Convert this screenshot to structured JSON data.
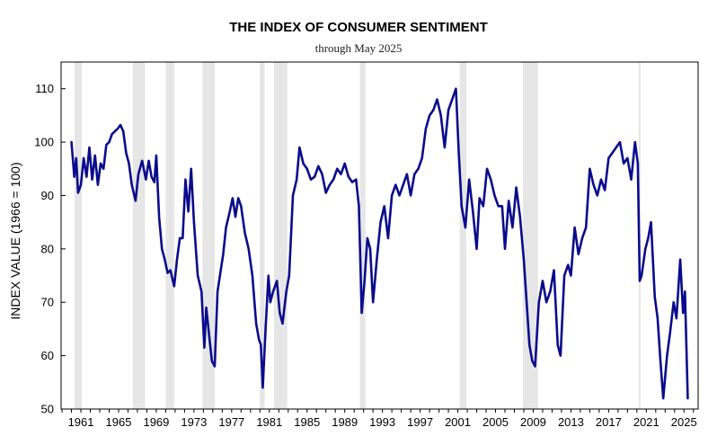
{
  "chart_data": {
    "type": "line",
    "title": "THE INDEX OF CONSUMER SENTIMENT",
    "subtitle": "through May 2025",
    "ylabel": "INDEX VALUE (1966 = 100)",
    "xlabel": "",
    "xlim": [
      1958.9,
      2026.5
    ],
    "ylim": [
      50,
      115
    ],
    "yticks": [
      50,
      60,
      70,
      80,
      90,
      100,
      110
    ],
    "xticks": [
      "1961",
      "1965",
      "1969",
      "1973",
      "1977",
      "1981",
      "1985",
      "1989",
      "1993",
      "1997",
      "2001",
      "2005",
      "2009",
      "2013",
      "2017",
      "2021",
      "2025"
    ],
    "grid": false,
    "recessions": [
      [
        1960.33,
        1961.1
      ],
      [
        1966.5,
        1967.8
      ],
      [
        1970.0,
        1970.9
      ],
      [
        1973.9,
        1975.2
      ],
      [
        1980.0,
        1980.5
      ],
      [
        1981.5,
        1982.9
      ],
      [
        1990.6,
        1991.2
      ],
      [
        2001.2,
        2001.9
      ],
      [
        2007.9,
        2009.5
      ],
      [
        2020.2,
        2020.35
      ]
    ],
    "series": [
      {
        "color": "#0b0b8c",
        "x": [
          1960.0,
          1960.3,
          1960.5,
          1960.7,
          1961.0,
          1961.3,
          1961.6,
          1961.9,
          1962.2,
          1962.5,
          1962.8,
          1963.1,
          1963.4,
          1963.7,
          1964.0,
          1964.3,
          1964.6,
          1964.9,
          1965.2,
          1965.5,
          1965.8,
          1966.1,
          1966.4,
          1966.8,
          1967.1,
          1967.5,
          1967.9,
          1968.2,
          1968.5,
          1968.8,
          1969.0,
          1969.3,
          1969.6,
          1969.9,
          1970.2,
          1970.5,
          1970.9,
          1971.2,
          1971.5,
          1971.8,
          1972.1,
          1972.4,
          1972.7,
          1973.0,
          1973.4,
          1973.8,
          1974.1,
          1974.3,
          1974.6,
          1974.9,
          1975.2,
          1975.5,
          1975.8,
          1976.1,
          1976.4,
          1976.8,
          1977.1,
          1977.4,
          1977.7,
          1978.0,
          1978.4,
          1978.8,
          1979.2,
          1979.6,
          1979.9,
          1980.1,
          1980.3,
          1980.6,
          1980.9,
          1981.1,
          1981.4,
          1981.8,
          1982.1,
          1982.4,
          1982.8,
          1983.1,
          1983.5,
          1983.9,
          1984.2,
          1984.6,
          1985.0,
          1985.4,
          1985.8,
          1986.2,
          1986.6,
          1987.0,
          1987.4,
          1987.8,
          1988.2,
          1988.6,
          1989.0,
          1989.4,
          1989.8,
          1990.2,
          1990.5,
          1990.8,
          1991.1,
          1991.4,
          1991.7,
          1992.0,
          1992.4,
          1992.8,
          1993.2,
          1993.6,
          1994.0,
          1994.4,
          1994.8,
          1995.2,
          1995.6,
          1996.0,
          1996.4,
          1996.8,
          1997.2,
          1997.6,
          1998.0,
          1998.4,
          1998.8,
          1999.2,
          1999.6,
          2000.0,
          2000.4,
          2000.8,
          2001.1,
          2001.4,
          2001.8,
          2002.2,
          2002.6,
          2003.0,
          2003.3,
          2003.7,
          2004.1,
          2004.5,
          2004.9,
          2005.3,
          2005.7,
          2006.0,
          2006.4,
          2006.8,
          2007.2,
          2007.6,
          2008.0,
          2008.3,
          2008.6,
          2008.9,
          2009.2,
          2009.6,
          2010.0,
          2010.4,
          2010.8,
          2011.2,
          2011.6,
          2011.9,
          2012.3,
          2012.7,
          2013.0,
          2013.4,
          2013.8,
          2014.2,
          2014.6,
          2015.0,
          2015.4,
          2015.8,
          2016.2,
          2016.6,
          2017.0,
          2017.4,
          2017.8,
          2018.2,
          2018.6,
          2019.0,
          2019.4,
          2019.8,
          2020.1,
          2020.3,
          2020.5,
          2020.9,
          2021.2,
          2021.5,
          2021.9,
          2022.2,
          2022.5,
          2022.8,
          2023.2,
          2023.5,
          2023.9,
          2024.2,
          2024.6,
          2024.9,
          2025.1,
          2025.4
        ],
        "values": [
          100.0,
          93.5,
          97.0,
          90.5,
          92.0,
          97.0,
          93.5,
          99.0,
          93.0,
          97.5,
          92.0,
          96.0,
          95.0,
          99.5,
          100.0,
          101.5,
          102.0,
          102.5,
          103.2,
          102.0,
          98.0,
          96.0,
          92.0,
          89.0,
          94.0,
          96.5,
          93.0,
          96.5,
          93.5,
          92.5,
          97.5,
          86.0,
          80.0,
          78.0,
          75.5,
          76.0,
          73.0,
          78.0,
          82.0,
          82.0,
          93.0,
          87.0,
          95.0,
          85.0,
          75.0,
          72.0,
          61.5,
          69.0,
          64.0,
          59.0,
          58.0,
          72.0,
          75.5,
          79.0,
          84.0,
          87.0,
          89.5,
          86.0,
          89.5,
          88.0,
          83.0,
          80.0,
          75.0,
          66.0,
          63.0,
          62.0,
          54.0,
          65.0,
          75.0,
          70.0,
          72.0,
          74.0,
          68.0,
          66.0,
          72.0,
          75.0,
          90.0,
          93.0,
          99.0,
          96.0,
          95.0,
          93.0,
          93.5,
          95.5,
          94.0,
          90.5,
          92.0,
          93.0,
          95.0,
          94.0,
          96.0,
          93.5,
          92.5,
          93.0,
          88.0,
          68.0,
          74.0,
          82.0,
          80.0,
          70.0,
          78.0,
          85.0,
          88.0,
          82.0,
          90.0,
          92.0,
          90.0,
          92.0,
          94.0,
          90.0,
          94.0,
          95.0,
          97.0,
          102.5,
          105.0,
          106.0,
          108.0,
          105.0,
          99.0,
          106.0,
          108.0,
          110.0,
          98.0,
          88.0,
          84.0,
          93.0,
          87.0,
          80.0,
          89.5,
          88.0,
          95.0,
          93.0,
          90.0,
          88.0,
          88.0,
          80.0,
          89.0,
          84.0,
          91.5,
          86.0,
          78.0,
          70.0,
          62.0,
          59.0,
          58.0,
          70.0,
          74.0,
          70.0,
          72.0,
          76.0,
          62.0,
          60.0,
          75.0,
          77.0,
          75.0,
          84.0,
          79.0,
          82.0,
          84.0,
          95.0,
          92.0,
          90.0,
          93.0,
          91.0,
          97.0,
          98.0,
          99.0,
          100.0,
          96.0,
          97.0,
          93.0,
          100.0,
          96.0,
          74.0,
          75.0,
          80.0,
          82.0,
          85.0,
          71.0,
          67.0,
          59.0,
          52.0,
          60.0,
          64.0,
          70.0,
          67.0,
          78.0,
          68.0,
          72.0,
          52.0
        ]
      }
    ]
  }
}
